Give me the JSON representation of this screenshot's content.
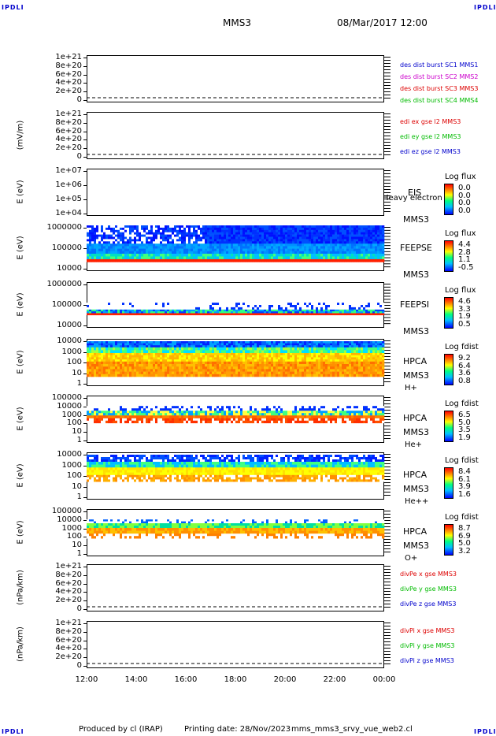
{
  "header": {
    "corner_label": "IPDLI",
    "spacecraft": "MMS3",
    "datetime": "08/Mar/2017 12:00"
  },
  "footer": {
    "produced_by": "Produced by cl (IRAP)",
    "printing_date": "Printing date: 28/Nov/2023",
    "file_name": "mms_mms3_srvy_vue_web2.cl"
  },
  "chart_data": [
    {
      "type": "line",
      "id": "des-dist",
      "ylabel": "",
      "y_ticks": [
        "1e+21",
        "8e+20",
        "6e+20",
        "4e+20",
        "2e+20",
        "0"
      ],
      "legend": [
        {
          "text": "des dist burst SC1 MMS1",
          "color": "#0000cc"
        },
        {
          "text": "des dist burst SC2 MMS2",
          "color": "#cc00cc"
        },
        {
          "text": "des dist burst SC3 MMS3",
          "color": "#dd0000"
        },
        {
          "text": "des dist burst SC4 MMS4",
          "color": "#00bb00"
        }
      ]
    },
    {
      "type": "line",
      "id": "edi",
      "ylabel": "(mV/m)",
      "y_ticks": [
        "1e+21",
        "8e+20",
        "6e+20",
        "4e+20",
        "2e+20",
        "0"
      ],
      "legend": [
        {
          "text": "edi ex gse l2 MMS3",
          "color": "#dd0000"
        },
        {
          "text": "edi ey gse l2 MMS3",
          "color": "#00bb00"
        },
        {
          "text": "edi ez gse l2 MMS3",
          "color": "#0000cc"
        }
      ]
    },
    {
      "type": "heatmap",
      "id": "eis",
      "ylabel": "E (eV)",
      "y_ticks": [
        "1e+07",
        "1e+06",
        "1e+05",
        "1e+04"
      ],
      "instrument": "EIS",
      "extra_label": "Heavy electron tc",
      "spacecraft": "MMS3",
      "colorbar_title": "Log flux",
      "colorbar_values": [
        "0.0",
        "0.0",
        "0.0",
        "0.0"
      ]
    },
    {
      "type": "heatmap",
      "id": "feepse",
      "ylabel": "E (eV)",
      "y_ticks": [
        "1000000",
        "100000",
        "10000"
      ],
      "instrument": "FEEPSE",
      "spacecraft": "MMS3",
      "colorbar_title": "Log flux",
      "colorbar_values": [
        "4.4",
        "2.8",
        "1.1",
        "-0.5"
      ]
    },
    {
      "type": "heatmap",
      "id": "feepsi",
      "ylabel": "E (eV)",
      "y_ticks": [
        "1000000",
        "100000",
        "10000"
      ],
      "instrument": "FEEPSI",
      "spacecraft": "MMS3",
      "colorbar_title": "Log flux",
      "colorbar_values": [
        "4.6",
        "3.3",
        "1.9",
        "0.5"
      ]
    },
    {
      "type": "heatmap",
      "id": "hpca-h",
      "ylabel": "E (eV)",
      "y_ticks": [
        "10000",
        "1000",
        "100",
        "10",
        "1"
      ],
      "instrument": "HPCA",
      "spacecraft": "MMS3",
      "species": "H+",
      "colorbar_title": "Log fdist",
      "colorbar_values": [
        "9.2",
        "6.4",
        "3.6",
        "0.8"
      ]
    },
    {
      "type": "heatmap",
      "id": "hpca-he",
      "ylabel": "E (eV)",
      "y_ticks": [
        "100000",
        "10000",
        "1000",
        "100",
        "10",
        "1"
      ],
      "instrument": "HPCA",
      "spacecraft": "MMS3",
      "species": "He+",
      "colorbar_title": "Log fdist",
      "colorbar_values": [
        "6.5",
        "5.0",
        "3.5",
        "1.9"
      ]
    },
    {
      "type": "heatmap",
      "id": "hpca-hepp",
      "ylabel": "E (eV)",
      "y_ticks": [
        "10000",
        "1000",
        "100",
        "10",
        "1"
      ],
      "instrument": "HPCA",
      "spacecraft": "MMS3",
      "species": "He++",
      "colorbar_title": "Log fdist",
      "colorbar_values": [
        "8.4",
        "6.1",
        "3.9",
        "1.6"
      ]
    },
    {
      "type": "heatmap",
      "id": "hpca-o",
      "ylabel": "E (eV)",
      "y_ticks": [
        "100000",
        "10000",
        "1000",
        "100",
        "10",
        "1"
      ],
      "instrument": "HPCA",
      "spacecraft": "MMS3",
      "species": "O+",
      "colorbar_title": "Log fdist",
      "colorbar_values": [
        "8.7",
        "6.9",
        "5.0",
        "3.2"
      ]
    },
    {
      "type": "line",
      "id": "divpe",
      "ylabel": "(nPa/km)",
      "y_ticks": [
        "1e+21",
        "8e+20",
        "6e+20",
        "4e+20",
        "2e+20",
        "0"
      ],
      "legend": [
        {
          "text": "divPe x gse MMS3",
          "color": "#dd0000"
        },
        {
          "text": "divPe y gse MMS3",
          "color": "#00bb00"
        },
        {
          "text": "divPe z gse MMS3",
          "color": "#0000cc"
        }
      ]
    },
    {
      "type": "line",
      "id": "divpi",
      "ylabel": "(nPa/km)",
      "y_ticks": [
        "1e+21",
        "8e+20",
        "6e+20",
        "4e+20",
        "2e+20",
        "0"
      ],
      "legend": [
        {
          "text": "divPi x gse MMS3",
          "color": "#dd0000"
        },
        {
          "text": "divPi y gse MMS3",
          "color": "#00bb00"
        },
        {
          "text": "divPi z gse MMS3",
          "color": "#0000cc"
        }
      ]
    }
  ],
  "x_ticks": [
    "12:00",
    "14:00",
    "16:00",
    "18:00",
    "20:00",
    "22:00",
    "00:00"
  ]
}
